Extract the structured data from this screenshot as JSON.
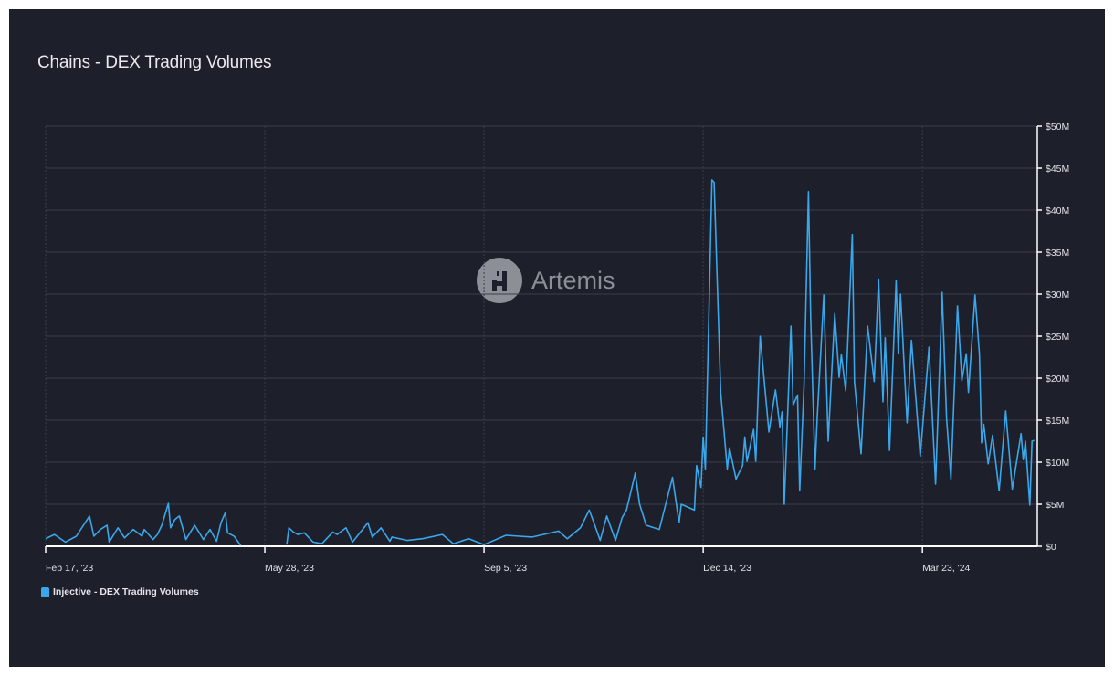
{
  "title": "Chains - DEX Trading Volumes",
  "watermark": "Artemis",
  "colors": {
    "background": "#1d1f2b",
    "line": "#3aa7ea",
    "grid": "#3a3d4b",
    "axis": "#ffffff"
  },
  "chart_data": {
    "type": "line",
    "title": "Chains - DEX Trading Volumes",
    "xlabel": "",
    "ylabel": "",
    "xlim": [
      "2023-02-17",
      "2024-05-14"
    ],
    "ylim": [
      0,
      50
    ],
    "y_unit": "$M",
    "x_ticks": [
      {
        "date": "2023-02-17",
        "label": "Feb 17, '23"
      },
      {
        "date": "2023-05-28",
        "label": "May 28, '23"
      },
      {
        "date": "2023-09-05",
        "label": "Sep 5, '23"
      },
      {
        "date": "2023-12-14",
        "label": "Dec 14, '23"
      },
      {
        "date": "2024-03-23",
        "label": "Mar 23, '24"
      }
    ],
    "y_ticks": [
      {
        "value": 0,
        "label": "$0"
      },
      {
        "value": 5,
        "label": "$5M"
      },
      {
        "value": 10,
        "label": "$10M"
      },
      {
        "value": 15,
        "label": "$15M"
      },
      {
        "value": 20,
        "label": "$20M"
      },
      {
        "value": 25,
        "label": "$25M"
      },
      {
        "value": 30,
        "label": "$30M"
      },
      {
        "value": 35,
        "label": "$35M"
      },
      {
        "value": 40,
        "label": "$40M"
      },
      {
        "value": 45,
        "label": "$45M"
      },
      {
        "value": 50,
        "label": "$50M"
      }
    ],
    "grid": true,
    "y_axis_position": "right",
    "legend_position": "bottom-left",
    "series": [
      {
        "name": "Injective - DEX Trading Volumes",
        "color": "#3aa7ea",
        "points": [
          [
            "2023-02-17",
            0.9
          ],
          [
            "2023-02-21",
            1.4
          ],
          [
            "2023-02-26",
            0.5
          ],
          [
            "2023-03-03",
            1.2
          ],
          [
            "2023-03-09",
            3.6
          ],
          [
            "2023-03-11",
            1.2
          ],
          [
            "2023-03-14",
            2.0
          ],
          [
            "2023-03-17",
            2.5
          ],
          [
            "2023-03-18",
            0.5
          ],
          [
            "2023-03-22",
            2.2
          ],
          [
            "2023-03-25",
            1.0
          ],
          [
            "2023-03-29",
            2.0
          ],
          [
            "2023-04-02",
            1.2
          ],
          [
            "2023-04-03",
            2.0
          ],
          [
            "2023-04-07",
            0.8
          ],
          [
            "2023-04-09",
            1.4
          ],
          [
            "2023-04-11",
            2.5
          ],
          [
            "2023-04-14",
            5.1
          ],
          [
            "2023-04-15",
            2.2
          ],
          [
            "2023-04-17",
            3.2
          ],
          [
            "2023-04-19",
            3.6
          ],
          [
            "2023-04-22",
            0.8
          ],
          [
            "2023-04-26",
            2.5
          ],
          [
            "2023-04-30",
            0.8
          ],
          [
            "2023-05-03",
            2.0
          ],
          [
            "2023-05-06",
            0.6
          ],
          [
            "2023-05-08",
            2.8
          ],
          [
            "2023-05-10",
            4.0
          ],
          [
            "2023-05-11",
            1.6
          ],
          [
            "2023-05-14",
            1.2
          ],
          [
            "2023-05-17",
            0.1
          ],
          [
            "2023-05-18",
            null
          ],
          [
            "2023-06-07",
            0.2
          ],
          [
            "2023-06-08",
            2.2
          ],
          [
            "2023-06-10",
            1.7
          ],
          [
            "2023-06-12",
            1.4
          ],
          [
            "2023-06-15",
            1.6
          ],
          [
            "2023-06-19",
            0.5
          ],
          [
            "2023-06-23",
            0.3
          ],
          [
            "2023-06-28",
            1.7
          ],
          [
            "2023-06-30",
            1.4
          ],
          [
            "2023-07-04",
            2.2
          ],
          [
            "2023-07-07",
            0.5
          ],
          [
            "2023-07-14",
            2.8
          ],
          [
            "2023-07-16",
            1.1
          ],
          [
            "2023-07-20",
            2.2
          ],
          [
            "2023-07-24",
            0.6
          ],
          [
            "2023-07-25",
            1.1
          ],
          [
            "2023-08-01",
            0.7
          ],
          [
            "2023-08-08",
            0.9
          ],
          [
            "2023-08-17",
            1.4
          ],
          [
            "2023-08-22",
            0.3
          ],
          [
            "2023-08-29",
            0.9
          ],
          [
            "2023-09-05",
            0.2
          ],
          [
            "2023-09-15",
            1.3
          ],
          [
            "2023-09-27",
            1.1
          ],
          [
            "2023-10-09",
            1.8
          ],
          [
            "2023-10-13",
            0.9
          ],
          [
            "2023-10-19",
            2.2
          ],
          [
            "2023-10-23",
            4.3
          ],
          [
            "2023-10-25",
            2.9
          ],
          [
            "2023-10-28",
            0.7
          ],
          [
            "2023-10-31",
            3.6
          ],
          [
            "2023-11-04",
            0.7
          ],
          [
            "2023-11-07",
            3.4
          ],
          [
            "2023-11-09",
            4.3
          ],
          [
            "2023-11-13",
            8.7
          ],
          [
            "2023-11-15",
            5.0
          ],
          [
            "2023-11-18",
            2.5
          ],
          [
            "2023-11-24",
            2.0
          ],
          [
            "2023-11-30",
            8.2
          ],
          [
            "2023-12-03",
            2.8
          ],
          [
            "2023-12-04",
            5.0
          ],
          [
            "2023-12-10",
            4.3
          ],
          [
            "2023-12-11",
            9.6
          ],
          [
            "2023-12-13",
            7.0
          ],
          [
            "2023-12-14",
            13.0
          ],
          [
            "2023-12-15",
            9.2
          ],
          [
            "2023-12-18",
            43.6
          ],
          [
            "2023-12-19",
            43.3
          ],
          [
            "2023-12-22",
            18.3
          ],
          [
            "2023-12-25",
            9.2
          ],
          [
            "2023-12-26",
            11.7
          ],
          [
            "2023-12-29",
            8.0
          ],
          [
            "2024-01-01",
            9.6
          ],
          [
            "2024-01-02",
            13.0
          ],
          [
            "2024-01-03",
            10.1
          ],
          [
            "2024-01-06",
            13.9
          ],
          [
            "2024-01-07",
            10.1
          ],
          [
            "2024-01-09",
            25.0
          ],
          [
            "2024-01-13",
            13.6
          ],
          [
            "2024-01-16",
            18.6
          ],
          [
            "2024-01-18",
            14.2
          ],
          [
            "2024-01-19",
            16.0
          ],
          [
            "2024-01-20",
            5.0
          ],
          [
            "2024-01-23",
            26.2
          ],
          [
            "2024-01-24",
            16.8
          ],
          [
            "2024-01-26",
            18.0
          ],
          [
            "2024-01-27",
            6.6
          ],
          [
            "2024-01-29",
            19.3
          ],
          [
            "2024-01-31",
            42.2
          ],
          [
            "2024-02-01",
            27.3
          ],
          [
            "2024-02-03",
            9.2
          ],
          [
            "2024-02-04",
            15.3
          ],
          [
            "2024-02-07",
            29.9
          ],
          [
            "2024-02-09",
            12.5
          ],
          [
            "2024-02-12",
            27.7
          ],
          [
            "2024-02-14",
            20.1
          ],
          [
            "2024-02-15",
            22.8
          ],
          [
            "2024-02-17",
            18.5
          ],
          [
            "2024-02-20",
            37.1
          ],
          [
            "2024-02-21",
            19.6
          ],
          [
            "2024-02-24",
            11.0
          ],
          [
            "2024-02-27",
            26.2
          ],
          [
            "2024-03-01",
            19.6
          ],
          [
            "2024-03-03",
            31.8
          ],
          [
            "2024-03-05",
            17.2
          ],
          [
            "2024-03-06",
            24.8
          ],
          [
            "2024-03-08",
            11.4
          ],
          [
            "2024-03-11",
            31.6
          ],
          [
            "2024-03-12",
            22.9
          ],
          [
            "2024-03-13",
            30.0
          ],
          [
            "2024-03-16",
            14.7
          ],
          [
            "2024-03-18",
            24.5
          ],
          [
            "2024-03-22",
            10.7
          ],
          [
            "2024-03-26",
            23.7
          ],
          [
            "2024-03-29",
            7.4
          ],
          [
            "2024-04-01",
            30.2
          ],
          [
            "2024-04-03",
            15.3
          ],
          [
            "2024-04-05",
            8.0
          ],
          [
            "2024-04-08",
            28.6
          ],
          [
            "2024-04-10",
            19.7
          ],
          [
            "2024-04-12",
            22.9
          ],
          [
            "2024-04-13",
            18.3
          ],
          [
            "2024-04-16",
            29.9
          ],
          [
            "2024-04-18",
            22.9
          ],
          [
            "2024-04-19",
            12.3
          ],
          [
            "2024-04-20",
            14.5
          ],
          [
            "2024-04-22",
            9.8
          ],
          [
            "2024-04-24",
            13.2
          ],
          [
            "2024-04-27",
            6.6
          ],
          [
            "2024-04-30",
            16.1
          ],
          [
            "2024-05-03",
            6.8
          ],
          [
            "2024-05-07",
            13.4
          ],
          [
            "2024-05-08",
            10.3
          ],
          [
            "2024-05-09",
            12.5
          ],
          [
            "2024-05-11",
            4.9
          ],
          [
            "2024-05-12",
            12.5
          ],
          [
            "2024-05-13",
            12.6
          ]
        ]
      }
    ]
  }
}
